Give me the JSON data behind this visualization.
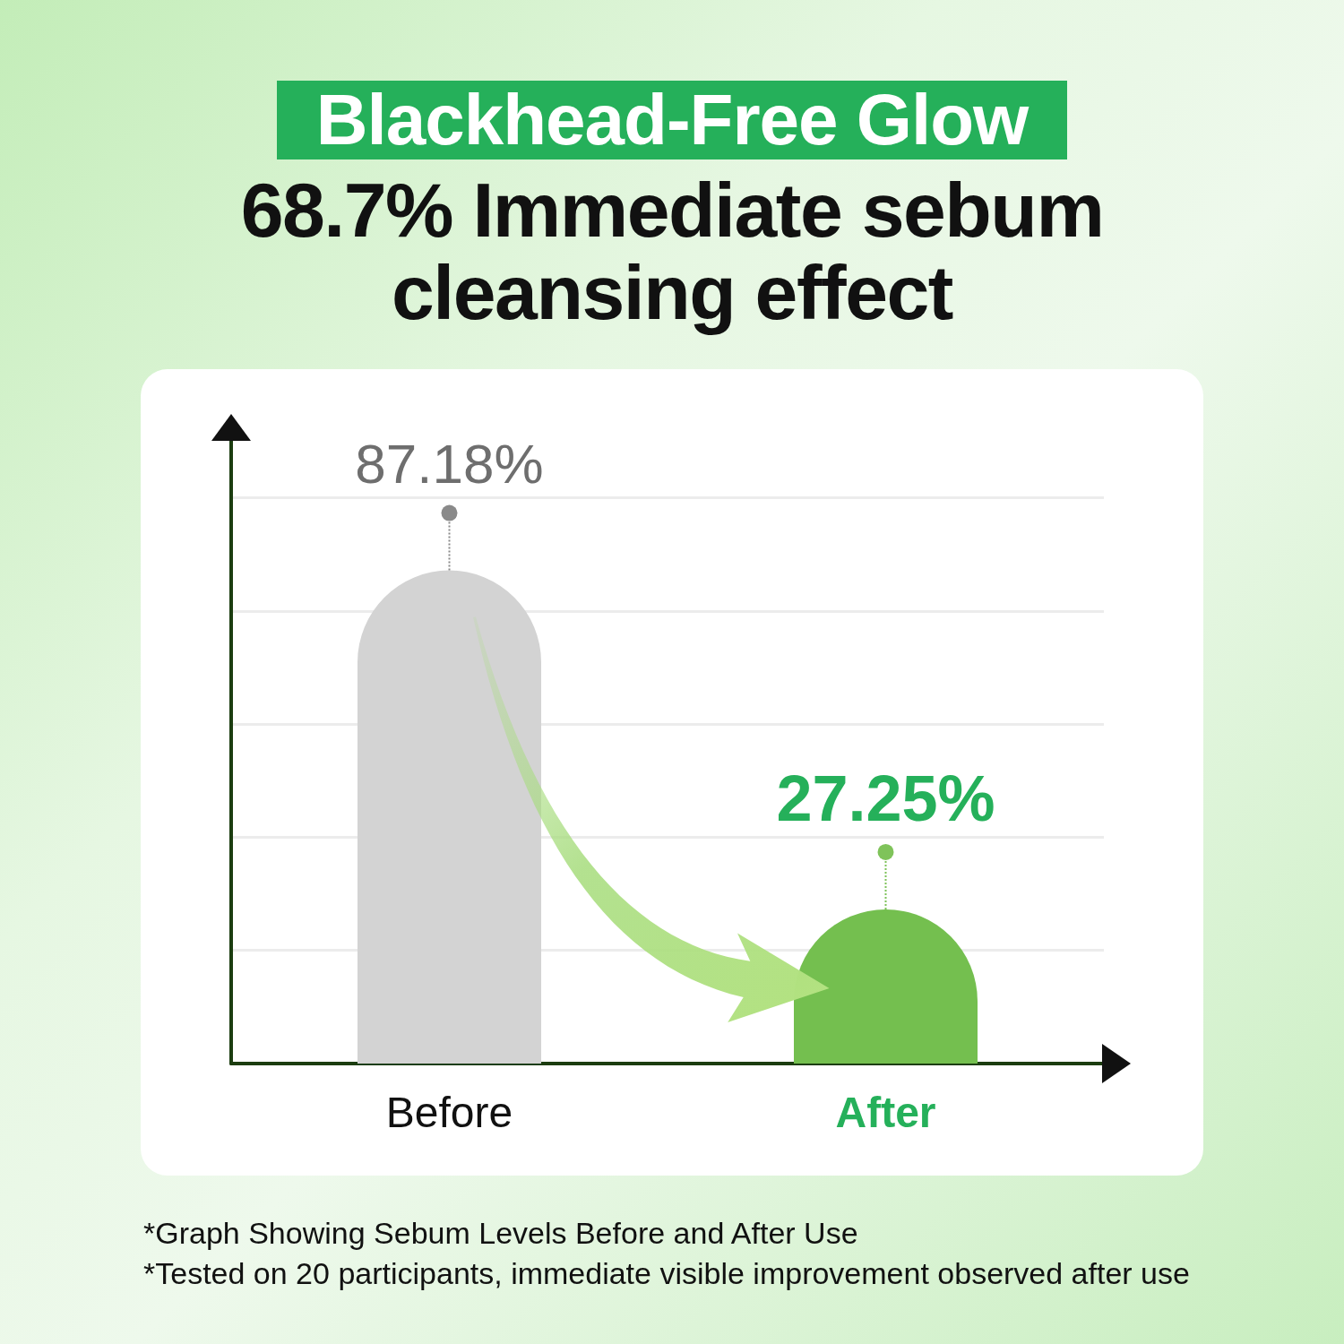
{
  "chart_data": {
    "type": "bar",
    "title": "Blackhead-Free Glow",
    "subtitle": "68.7% Immediate sebum cleansing effect",
    "categories": [
      "Before",
      "After"
    ],
    "values": [
      87.18,
      27.25
    ],
    "value_labels": [
      "87.18%",
      "27.25%"
    ],
    "colors": [
      "#d3d3d3",
      "#74bf4f"
    ],
    "grid": "y",
    "tick_labels": "x",
    "annotations": [
      "*Graph Showing Sebum Levels Before and After Use",
      "*Tested on 20 participants, immediate visible improvement observed after use"
    ]
  }
}
